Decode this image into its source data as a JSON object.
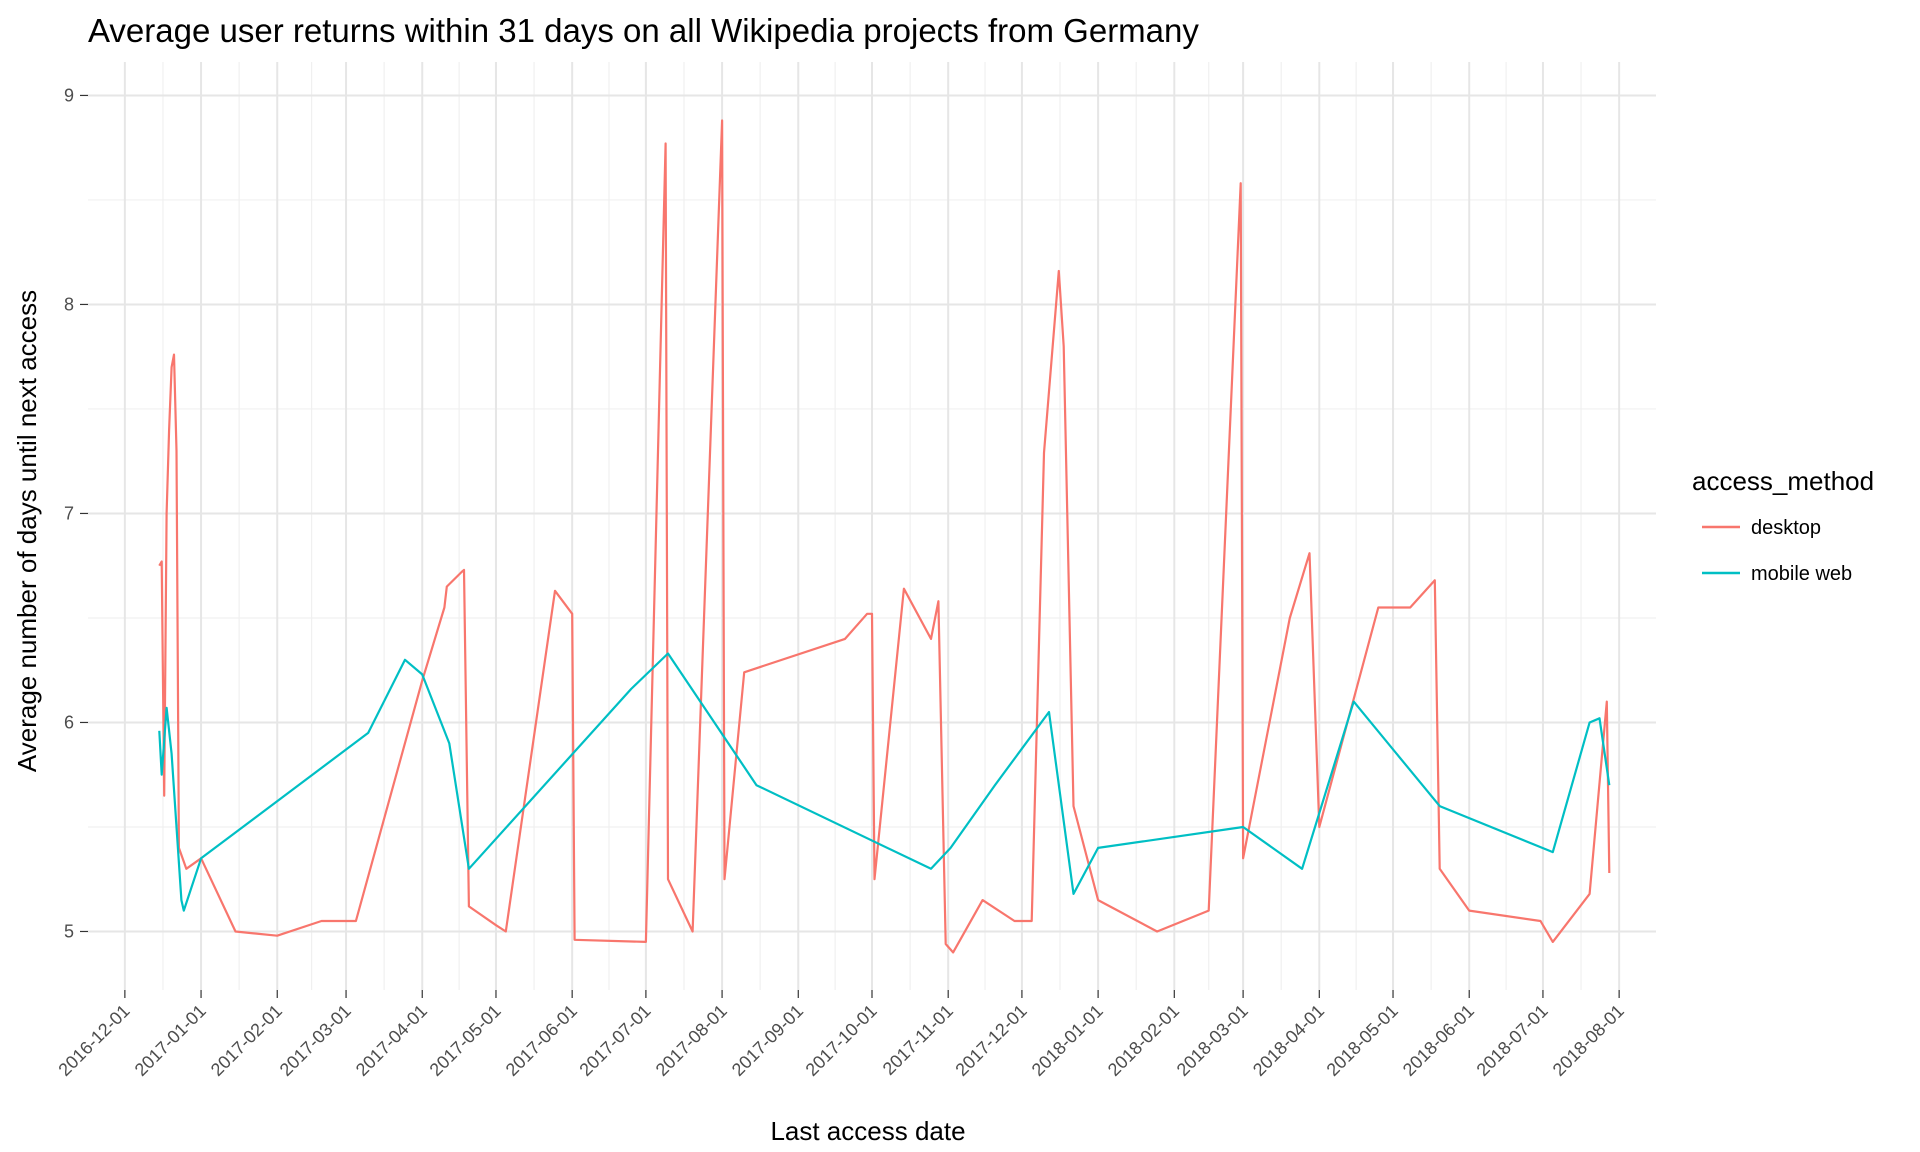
{
  "chart_data": {
    "type": "line",
    "title": "Average user returns within 31 days on all Wikipedia projects from Germany",
    "xlabel": "Last access date",
    "ylabel": "Average number of days until next access",
    "x_axis": "date",
    "xlim": [
      "2016-11-16",
      "2018-08-16"
    ],
    "ylim": [
      4.72,
      9.16
    ],
    "y_ticks": [
      5,
      6,
      7,
      8,
      9
    ],
    "x_ticks": [
      "2016-12-01",
      "2017-01-01",
      "2017-02-01",
      "2017-03-01",
      "2017-04-01",
      "2017-05-01",
      "2017-06-01",
      "2017-07-01",
      "2017-08-01",
      "2017-09-01",
      "2017-10-01",
      "2017-11-01",
      "2017-12-01",
      "2018-01-01",
      "2018-02-01",
      "2018-03-01",
      "2018-04-01",
      "2018-05-01",
      "2018-06-01",
      "2018-07-01",
      "2018-08-01"
    ],
    "grid": true,
    "legend": {
      "title": "access_method",
      "position": "right"
    },
    "date_start": "2016-12-15",
    "date_end": "2018-07-28",
    "series": [
      {
        "name": "desktop",
        "color": "#F8766D",
        "points": [
          [
            "2016-12-15",
            6.75
          ],
          [
            "2016-12-16",
            6.77
          ],
          [
            "2016-12-17",
            5.65
          ],
          [
            "2016-12-18",
            7.0
          ],
          [
            "2016-12-19",
            7.4
          ],
          [
            "2016-12-20",
            7.7
          ],
          [
            "2016-12-21",
            7.76
          ],
          [
            "2016-12-22",
            7.3
          ],
          [
            "2016-12-23",
            5.4
          ],
          [
            "2016-12-26",
            5.3
          ],
          [
            "2017-01-01",
            5.35
          ],
          [
            "2017-01-15",
            5.0
          ],
          [
            "2017-02-01",
            4.98
          ],
          [
            "2017-02-19",
            5.05
          ],
          [
            "2017-03-05",
            5.05
          ],
          [
            "2017-04-01",
            6.2
          ],
          [
            "2017-04-10",
            6.55
          ],
          [
            "2017-04-11",
            6.65
          ],
          [
            "2017-04-17",
            6.72
          ],
          [
            "2017-04-18",
            6.73
          ],
          [
            "2017-04-20",
            5.12
          ],
          [
            "2017-05-01",
            5.03
          ],
          [
            "2017-05-05",
            5.0
          ],
          [
            "2017-05-25",
            6.63
          ],
          [
            "2017-06-01",
            6.52
          ],
          [
            "2017-06-02",
            4.96
          ],
          [
            "2017-07-01",
            4.95
          ],
          [
            "2017-07-09",
            8.77
          ],
          [
            "2017-07-10",
            5.25
          ],
          [
            "2017-07-20",
            5.0
          ],
          [
            "2017-08-01",
            8.88
          ],
          [
            "2017-08-02",
            5.25
          ],
          [
            "2017-08-10",
            6.24
          ],
          [
            "2017-09-20",
            6.4
          ],
          [
            "2017-09-29",
            6.52
          ],
          [
            "2017-10-01",
            6.52
          ],
          [
            "2017-10-02",
            5.25
          ],
          [
            "2017-10-14",
            6.64
          ],
          [
            "2017-10-25",
            6.4
          ],
          [
            "2017-10-28",
            6.58
          ],
          [
            "2017-10-31",
            4.94
          ],
          [
            "2017-11-03",
            4.9
          ],
          [
            "2017-11-15",
            5.15
          ],
          [
            "2017-11-28",
            5.05
          ],
          [
            "2017-12-05",
            5.05
          ],
          [
            "2017-12-10",
            7.29
          ],
          [
            "2017-12-16",
            8.16
          ],
          [
            "2017-12-18",
            7.8
          ],
          [
            "2017-12-22",
            5.6
          ],
          [
            "2018-01-01",
            5.15
          ],
          [
            "2018-01-25",
            5.0
          ],
          [
            "2018-02-15",
            5.1
          ],
          [
            "2018-02-28",
            8.58
          ],
          [
            "2018-03-01",
            5.35
          ],
          [
            "2018-03-20",
            6.5
          ],
          [
            "2018-03-28",
            6.81
          ],
          [
            "2018-04-01",
            5.5
          ],
          [
            "2018-04-25",
            6.55
          ],
          [
            "2018-05-08",
            6.55
          ],
          [
            "2018-05-18",
            6.68
          ],
          [
            "2018-05-20",
            5.3
          ],
          [
            "2018-06-01",
            5.1
          ],
          [
            "2018-06-30",
            5.05
          ],
          [
            "2018-07-05",
            4.95
          ],
          [
            "2018-07-20",
            5.18
          ],
          [
            "2018-07-27",
            6.1
          ],
          [
            "2018-07-28",
            5.28
          ]
        ]
      },
      {
        "name": "mobile web",
        "color": "#00BFC4",
        "points": [
          [
            "2016-12-15",
            5.96
          ],
          [
            "2016-12-16",
            5.75
          ],
          [
            "2016-12-18",
            6.07
          ],
          [
            "2016-12-20",
            5.85
          ],
          [
            "2016-12-24",
            5.15
          ],
          [
            "2016-12-25",
            5.1
          ],
          [
            "2017-01-01",
            5.35
          ],
          [
            "2017-03-10",
            5.95
          ],
          [
            "2017-03-25",
            6.3
          ],
          [
            "2017-04-01",
            6.23
          ],
          [
            "2017-04-12",
            5.9
          ],
          [
            "2017-04-20",
            5.3
          ],
          [
            "2017-06-25",
            6.16
          ],
          [
            "2017-07-10",
            6.33
          ],
          [
            "2017-08-15",
            5.7
          ],
          [
            "2017-10-25",
            5.3
          ],
          [
            "2017-11-02",
            5.4
          ],
          [
            "2017-11-20",
            5.7
          ],
          [
            "2017-12-12",
            6.05
          ],
          [
            "2017-12-22",
            5.18
          ],
          [
            "2018-01-01",
            5.4
          ],
          [
            "2018-03-01",
            5.5
          ],
          [
            "2018-03-25",
            5.3
          ],
          [
            "2018-04-15",
            6.1
          ],
          [
            "2018-05-20",
            5.6
          ],
          [
            "2018-07-05",
            5.38
          ],
          [
            "2018-07-20",
            6.0
          ],
          [
            "2018-07-24",
            6.02
          ],
          [
            "2018-07-28",
            5.7
          ]
        ]
      }
    ]
  }
}
